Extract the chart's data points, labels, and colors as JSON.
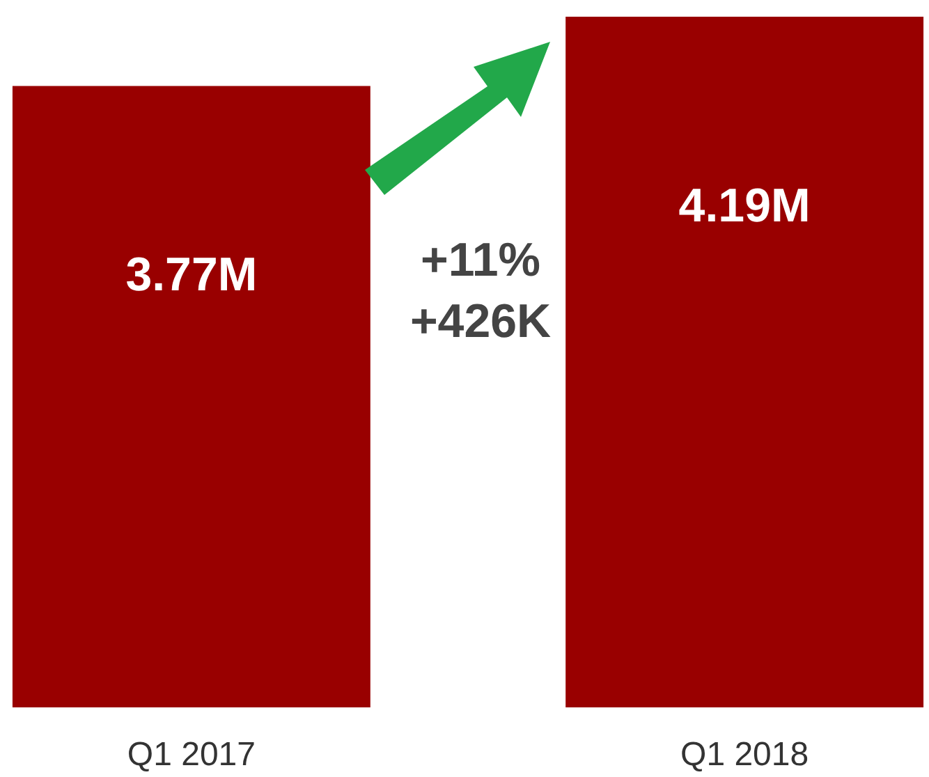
{
  "chart_data": {
    "type": "bar",
    "categories": [
      "Q1 2017",
      "Q1 2018"
    ],
    "values": [
      3.77,
      4.19
    ],
    "value_labels": [
      "3.77M",
      "4.19M"
    ],
    "color": "#990000",
    "tick_labels": "x",
    "grid": false,
    "annotations": [
      "+11%",
      "+426K"
    ]
  }
}
